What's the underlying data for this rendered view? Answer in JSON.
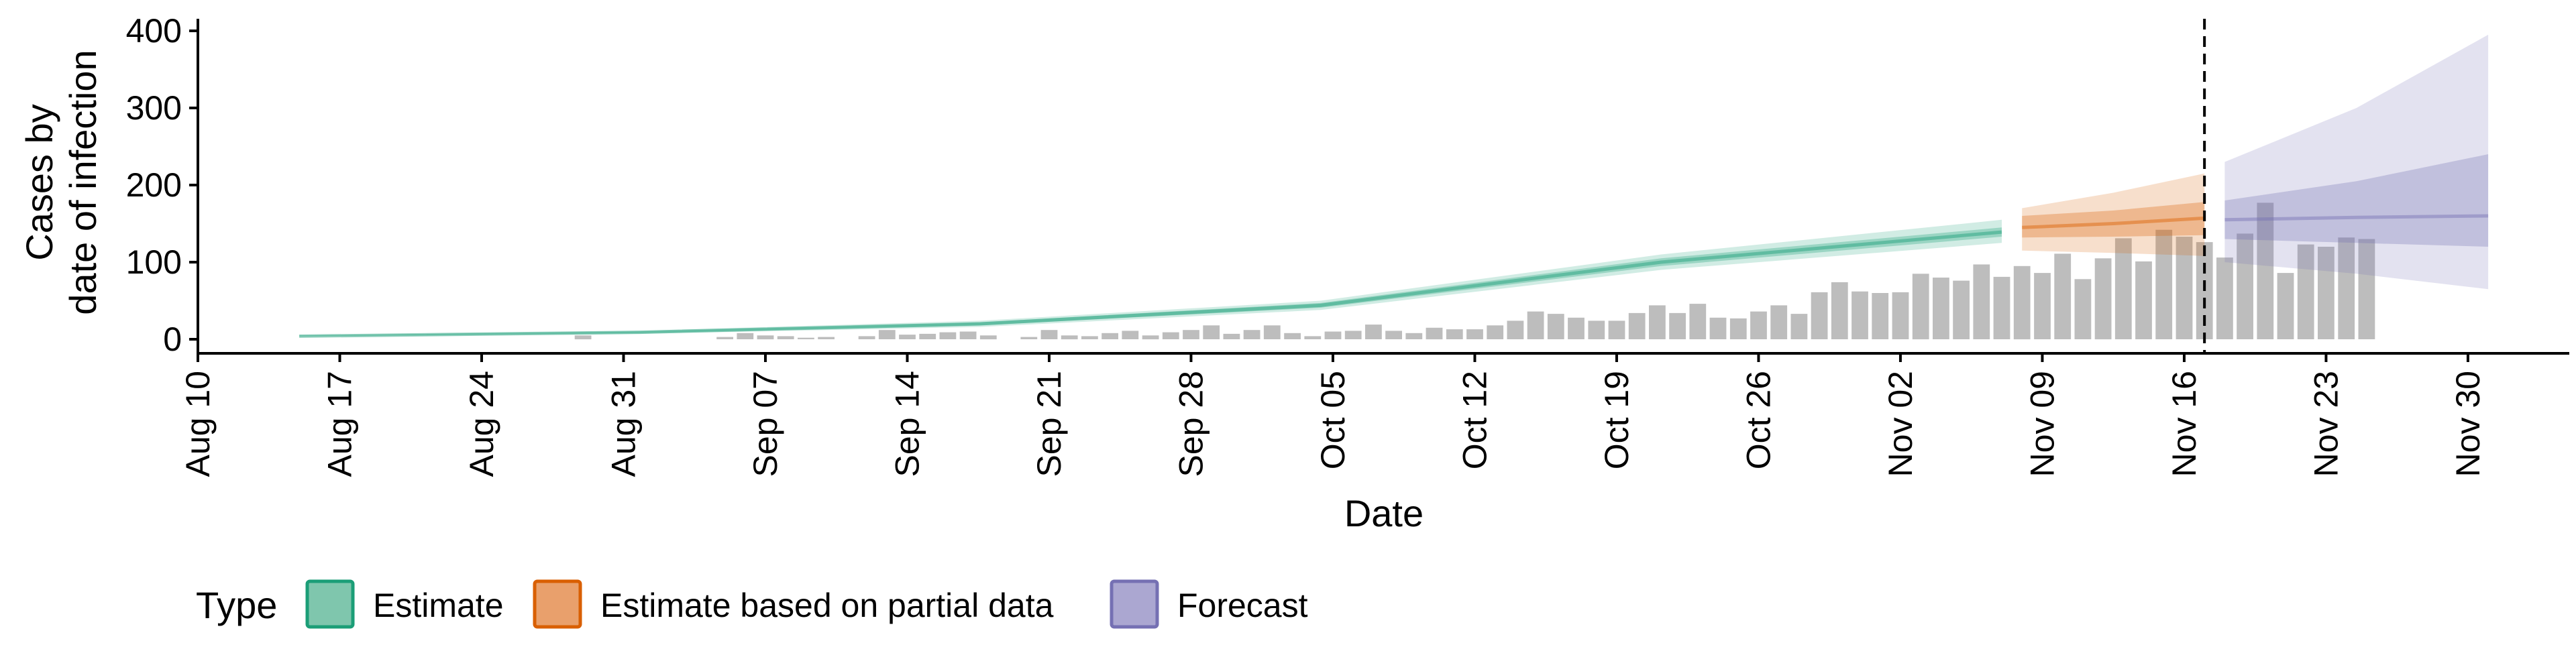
{
  "chart_data": {
    "type": "bar",
    "title": "",
    "xlabel": "Date",
    "ylabel": [
      "Cases by",
      "date of infection"
    ],
    "ylim": [
      0,
      400
    ],
    "yticks": [
      0,
      100,
      200,
      300,
      400
    ],
    "xticks": [
      "Aug 10",
      "Aug 17",
      "Aug 24",
      "Aug 31",
      "Sep 07",
      "Sep 14",
      "Sep 21",
      "Sep 28",
      "Oct 05",
      "Oct 12",
      "Oct 19",
      "Oct 26",
      "Nov 02",
      "Nov 09",
      "Nov 16",
      "Nov 23",
      "Nov 30"
    ],
    "x_tick_dates": [
      "2020-08-10",
      "2020-08-17",
      "2020-08-24",
      "2020-08-31",
      "2020-09-07",
      "2020-09-14",
      "2020-09-21",
      "2020-09-28",
      "2020-10-05",
      "2020-10-12",
      "2020-10-19",
      "2020-10-26",
      "2020-11-02",
      "2020-11-09",
      "2020-11-16",
      "2020-11-23",
      "2020-11-30"
    ],
    "xlim": [
      "2020-08-10",
      "2020-12-05"
    ],
    "grid": false,
    "vline_date": "2020-11-17",
    "bars": {
      "start_date": "2020-08-15",
      "color": "#bdbdbd",
      "values": [
        0,
        0,
        0,
        0,
        0,
        0,
        0,
        0,
        0,
        0,
        0,
        0,
        0,
        0,
        5,
        0,
        0,
        0,
        0,
        0,
        0,
        3,
        8,
        5,
        4,
        2,
        3,
        0,
        4,
        12,
        6,
        7,
        9,
        10,
        5,
        0,
        3,
        12,
        5,
        4,
        8,
        11,
        5,
        9,
        12,
        18,
        7,
        12,
        18,
        8,
        4,
        10,
        11,
        19,
        11,
        8,
        15,
        13,
        13,
        18,
        24,
        36,
        33,
        28,
        24,
        24,
        34,
        44,
        34,
        46,
        28,
        27,
        36,
        44,
        33,
        61,
        74,
        62,
        60,
        61,
        85,
        80,
        76,
        97,
        81,
        95,
        86,
        111,
        78,
        105,
        131,
        101,
        142,
        133,
        126,
        106,
        137,
        177,
        86,
        123,
        120,
        132,
        130
      ]
    },
    "series": [
      {
        "name": "Estimate",
        "color": "#1b9e77",
        "start_date": "2020-08-15",
        "end_date": "2020-11-07",
        "median": [
          4,
          9,
          20,
          44,
          100,
          139
        ],
        "lower_outer": [
          3,
          7,
          16,
          38,
          90,
          125
        ],
        "upper_outer": [
          5,
          11,
          24,
          50,
          110,
          155
        ],
        "lower_inner": [
          4,
          8,
          18,
          41,
          95,
          133
        ],
        "upper_inner": [
          5,
          10,
          22,
          47,
          105,
          145
        ]
      },
      {
        "name": "Estimate based on partial data",
        "color": "#d95f02",
        "start_date": "2020-11-08",
        "end_date": "2020-11-17",
        "median": [
          145,
          150,
          157
        ],
        "lower_outer": [
          115,
          112,
          108
        ],
        "upper_outer": [
          170,
          190,
          215
        ],
        "lower_inner": [
          132,
          133,
          135
        ],
        "upper_inner": [
          160,
          167,
          178
        ]
      },
      {
        "name": "Forecast",
        "color": "#7570b3",
        "start_date": "2020-11-18",
        "end_date": "2020-12-01",
        "median": [
          155,
          158,
          160
        ],
        "lower_outer": [
          100,
          85,
          65
        ],
        "upper_outer": [
          230,
          300,
          395
        ],
        "lower_inner": [
          130,
          125,
          120
        ],
        "upper_inner": [
          180,
          205,
          240
        ]
      }
    ]
  },
  "legend": {
    "title": "Type",
    "items": [
      {
        "label": "Estimate",
        "fill": "#7fc6ad",
        "stroke": "#1b9e77"
      },
      {
        "label": "Estimate based on partial data",
        "fill": "#e9a06c",
        "stroke": "#d95f02"
      },
      {
        "label": "Forecast",
        "fill": "#aba7d1",
        "stroke": "#7570b3"
      }
    ]
  }
}
